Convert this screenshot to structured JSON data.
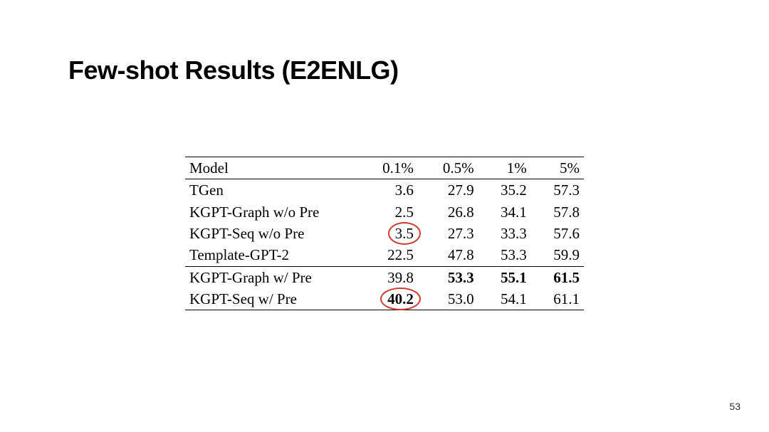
{
  "title": "Few-shot Results (E2ENLG)",
  "page_number": "53",
  "table": {
    "columns": [
      "Model",
      "0.1%",
      "0.5%",
      "1%",
      "5%"
    ],
    "group1": [
      {
        "model": "TGen",
        "v": [
          "3.6",
          "27.9",
          "35.2",
          "57.3"
        ],
        "bold": [
          false,
          false,
          false,
          false
        ],
        "circle": [
          false,
          false,
          false,
          false
        ]
      },
      {
        "model": "KGPT-Graph w/o Pre",
        "v": [
          "2.5",
          "26.8",
          "34.1",
          "57.8"
        ],
        "bold": [
          false,
          false,
          false,
          false
        ],
        "circle": [
          false,
          false,
          false,
          false
        ]
      },
      {
        "model": "KGPT-Seq w/o Pre",
        "v": [
          "3.5",
          "27.3",
          "33.3",
          "57.6"
        ],
        "bold": [
          false,
          false,
          false,
          false
        ],
        "circle": [
          true,
          false,
          false,
          false
        ]
      },
      {
        "model": "Template-GPT-2",
        "v": [
          "22.5",
          "47.8",
          "53.3",
          "59.9"
        ],
        "bold": [
          false,
          false,
          false,
          false
        ],
        "circle": [
          false,
          false,
          false,
          false
        ]
      }
    ],
    "group2": [
      {
        "model": "KGPT-Graph w/ Pre",
        "v": [
          "39.8",
          "53.3",
          "55.1",
          "61.5"
        ],
        "bold": [
          false,
          true,
          true,
          true
        ],
        "circle": [
          false,
          false,
          false,
          false
        ]
      },
      {
        "model": "KGPT-Seq w/ Pre",
        "v": [
          "40.2",
          "53.0",
          "54.1",
          "61.1"
        ],
        "bold": [
          true,
          false,
          false,
          false
        ],
        "circle": [
          true,
          false,
          false,
          false
        ]
      }
    ],
    "colors": {
      "circle": "#d33a2f",
      "rule": "#000000",
      "text": "#000000",
      "bg": "#ffffff"
    },
    "fonts": {
      "title_family": "Helvetica",
      "title_weight": 800,
      "title_size_pt": 27,
      "table_family": "Times New Roman",
      "table_size_pt": 16
    }
  }
}
